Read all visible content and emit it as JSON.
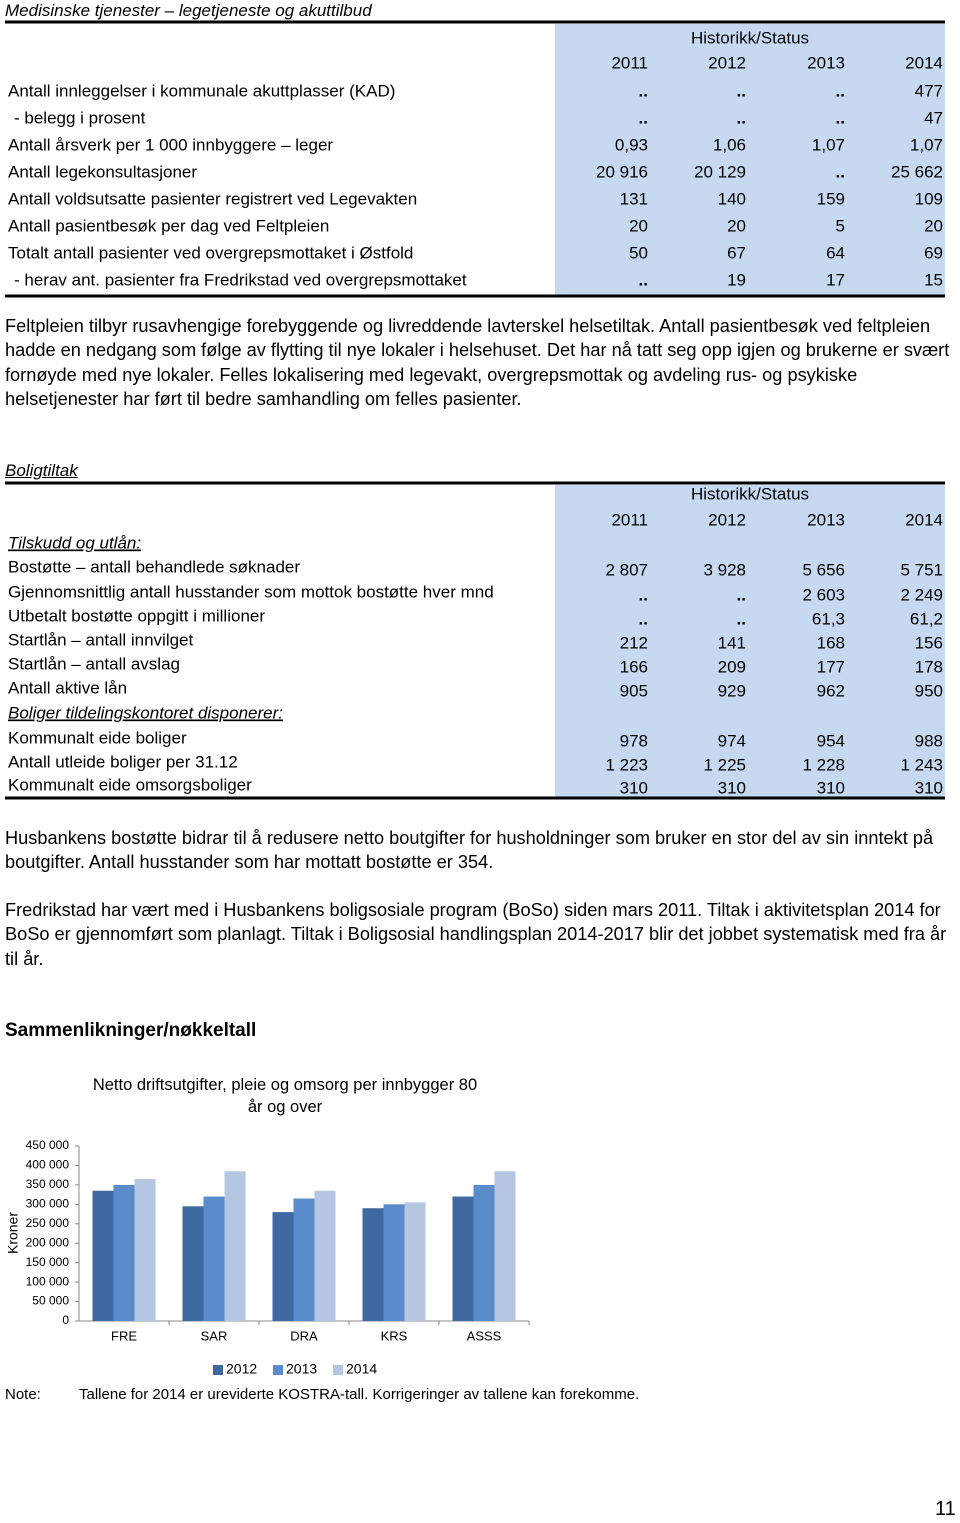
{
  "header": {
    "title": "Medisinske tjenester – legetjeneste og akuttilbud"
  },
  "table1": {
    "group_header": "Historikk/Status",
    "columns": [
      "2011",
      "2012",
      "2013",
      "2014"
    ],
    "rows": [
      [
        "Antall innleggelser i kommunale akuttplasser (KAD)",
        "..",
        "..",
        "..",
        "477"
      ],
      [
        "- belegg i prosent",
        "..",
        "..",
        "..",
        "47"
      ],
      [
        "Antall årsverk per 1 000 innbyggere – leger",
        "0,93",
        "1,06",
        "1,07",
        "1,07"
      ],
      [
        "Antall legekonsultasjoner",
        "20 916",
        "20 129",
        "..",
        "25 662"
      ],
      [
        "Antall voldsutsatte pasienter registrert ved Legevakten",
        "131",
        "140",
        "159",
        "109"
      ],
      [
        "Antall pasientbesøk per dag ved Feltpleien",
        "20",
        "20",
        "5",
        "20"
      ],
      [
        "Totalt antall pasienter ved overgrepsmottaket i Østfold",
        "50",
        "67",
        "64",
        "69"
      ],
      [
        "- herav ant. pasienter fra Fredrikstad ved overgrepsmottaket",
        "..",
        "19",
        "17",
        "15"
      ]
    ]
  },
  "paragraph1": "Feltpleien tilbyr rusavhengige forebyggende og livreddende lavterskel helsetiltak. Antall pasientbesøk ved feltpleien hadde en nedgang som følge av flytting til nye lokaler i helsehuset. Det har nå tatt seg opp igjen og brukerne er svært fornøyde med nye lokaler. Felles lokalisering med legevakt, overgrepsmottak og avdeling rus- og psykiske helsetjenester har ført til bedre samhandling om felles pasienter.",
  "section2": {
    "title": "Boligtiltak"
  },
  "table2": {
    "group_header": "Historikk/Status",
    "columns": [
      "2011",
      "2012",
      "2013",
      "2014"
    ],
    "rows": [
      [
        "Tilskudd og utlån:"
      ],
      [
        "Bostøtte – antall behandlede søknader",
        "2 807",
        "3 928",
        "5 656",
        "5 751"
      ],
      [
        "Gjennomsnittlig antall husstander som mottok bostøtte hver mnd",
        "..",
        "..",
        "2 603",
        "2 249"
      ],
      [
        "Utbetalt bostøtte oppgitt i millioner",
        "..",
        "..",
        "61,3",
        "61,2"
      ],
      [
        "Startlån – antall innvilget",
        "212",
        "141",
        "168",
        "156"
      ],
      [
        "Startlån – antall avslag",
        "166",
        "209",
        "177",
        "178"
      ],
      [
        "Antall aktive lån",
        "905",
        "929",
        "962",
        "950"
      ],
      [
        "Boliger tildelingskontoret disponerer:"
      ],
      [
        "Kommunalt eide boliger",
        "978",
        "974",
        "954",
        "988"
      ],
      [
        "Antall utleide boliger per 31.12",
        "1 223",
        "1 225",
        "1 228",
        "1 243"
      ],
      [
        "Kommunalt eide omsorgsboliger",
        "310",
        "310",
        "310",
        "310"
      ]
    ]
  },
  "paragraphs": [
    "Husbankens bostøtte bidrar til å redusere netto boutgifter for husholdninger som bruker en stor del av sin inntekt på boutgifter. Antall husstander som har mottatt bostøtte er 354.",
    "Fredrikstad har vært med i Husbankens boligsosiale program (BoSo) siden mars 2011. Tiltak i aktivitetsplan 2014 for BoSo er gjennomført som planlagt. Tiltak i Boligsosial handlingsplan 2014-2017 blir det jobbet systematisk med fra år til år."
  ],
  "section3": {
    "title": "Sammenlikninger/nøkkeltall"
  },
  "chart_data": {
    "type": "bar",
    "title": "Netto driftsutgifter, pleie og omsorg per innbygger 80 år og over",
    "y_label": "Kroner",
    "categories": [
      "FRE",
      "SAR",
      "DRA",
      "KRS",
      "ASSS"
    ],
    "series": [
      {
        "name": "2012",
        "color": "#3e6aa1",
        "values": [
          335000,
          295000,
          280000,
          290000,
          320000
        ]
      },
      {
        "name": "2013",
        "color": "#5a8bca",
        "values": [
          350000,
          320000,
          315000,
          300000,
          350000
        ]
      },
      {
        "name": "2014",
        "color": "#b4c6e2",
        "values": [
          365000,
          385000,
          335000,
          305000,
          385000
        ]
      }
    ],
    "ylim": [
      0,
      450000
    ],
    "yticks": [
      0,
      {
        "value": 50000,
        "label": "50 000"
      },
      {
        "value": 100000,
        "label": "100 000"
      },
      {
        "value": 150000,
        "label": "150 000"
      },
      {
        "value": 200000,
        "label": "200 000"
      },
      {
        "value": 250000,
        "label": "250 000"
      },
      {
        "value": 300000,
        "label": "300 000"
      },
      {
        "value": 350000,
        "label": "350 000"
      },
      {
        "value": 400000,
        "label": "400 000"
      },
      {
        "value": 450000,
        "label": "450 000"
      }
    ],
    "legend": "bottom"
  },
  "note": {
    "label": "Note:",
    "text": "Tallene for 2014 er ureviderte KOSTRA-tall. Korrigeringer av tallene kan forekomme."
  },
  "page_number": "11"
}
